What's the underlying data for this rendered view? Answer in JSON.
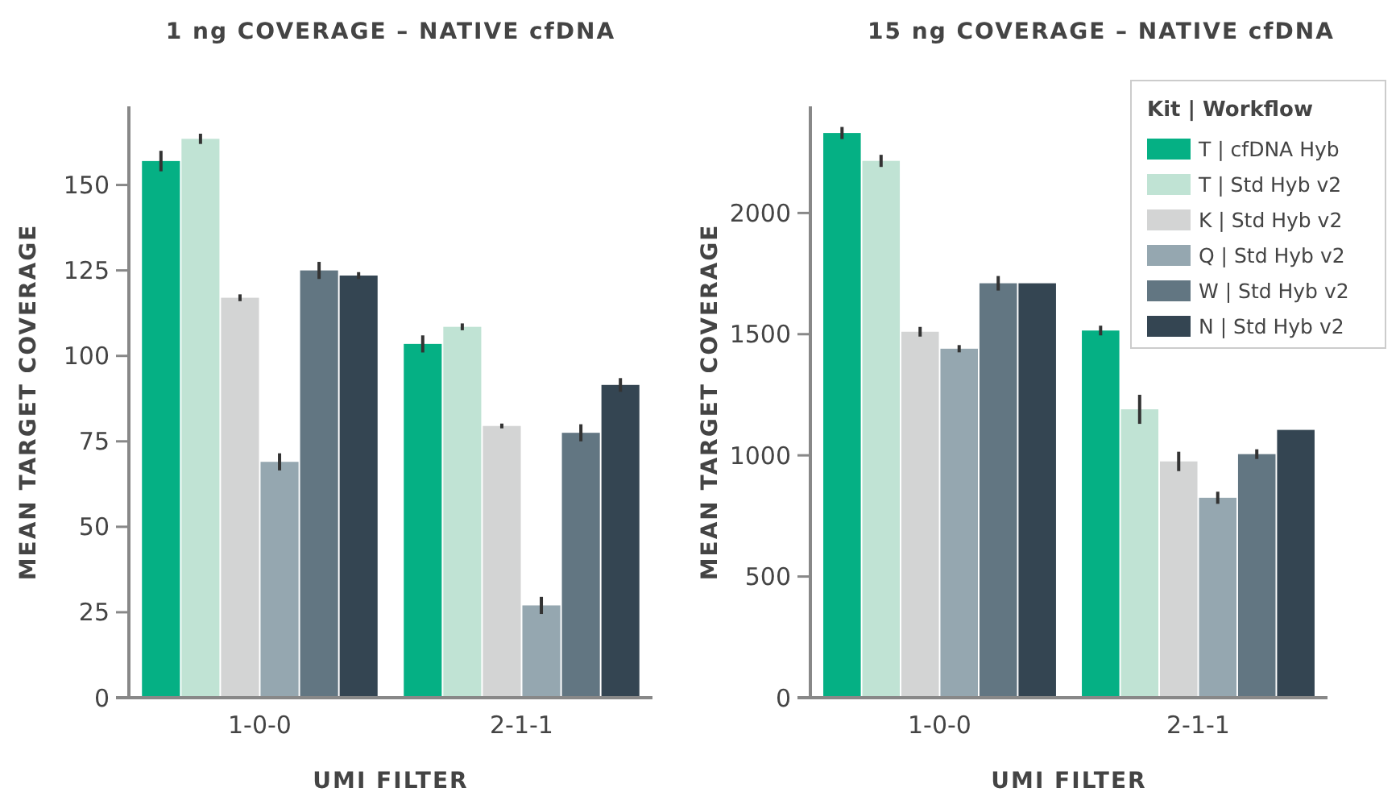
{
  "chart_data": [
    {
      "type": "bar",
      "title": "1 ng COVERAGE – NATIVE cfDNA",
      "xlabel": "UMI FILTER",
      "ylabel": "MEAN TARGET COVERAGE",
      "categories": [
        "1-0-0",
        "2-1-1"
      ],
      "ylim": [
        0,
        173
      ],
      "yticks": [
        0,
        25,
        50,
        75,
        100,
        125,
        150
      ],
      "grid": false,
      "legend": false,
      "series": [
        {
          "color": "#05b084",
          "values": [
            157,
            103.5
          ],
          "errors": [
            3,
            2.5
          ]
        },
        {
          "color": "#c0e3d4",
          "values": [
            163.5,
            108.5
          ],
          "errors": [
            1.5,
            1
          ]
        },
        {
          "color": "#d3d4d4",
          "values": [
            117,
            79.5
          ],
          "errors": [
            1,
            0.7
          ]
        },
        {
          "color": "#95a7b0",
          "values": [
            69,
            27
          ],
          "errors": [
            2.5,
            2.5
          ]
        },
        {
          "color": "#627682",
          "values": [
            125,
            77.5
          ],
          "errors": [
            2.5,
            2.5
          ]
        },
        {
          "color": "#344552",
          "values": [
            123.5,
            91.5
          ],
          "errors": [
            1,
            2
          ]
        }
      ]
    },
    {
      "type": "bar",
      "title": "15 ng COVERAGE – NATIVE cfDNA",
      "xlabel": "UMI FILTER",
      "ylabel": "MEAN TARGET COVERAGE",
      "categories": [
        "1-0-0",
        "2-1-1"
      ],
      "ylim": [
        0,
        2440
      ],
      "yticks": [
        0,
        500,
        1000,
        1500,
        2000
      ],
      "grid": false,
      "legend": "top right",
      "legend_title": "Kit | Workflow",
      "series": [
        {
          "name": "T | cfDNA Hyb",
          "color": "#05b084",
          "values": [
            2330,
            1515
          ],
          "errors": [
            25,
            20
          ]
        },
        {
          "name": "T | Std Hyb v2",
          "color": "#c0e3d4",
          "values": [
            2215,
            1190
          ],
          "errors": [
            25,
            60
          ]
        },
        {
          "name": "K | Std Hyb v2",
          "color": "#d3d4d4",
          "values": [
            1510,
            975
          ],
          "errors": [
            20,
            40
          ]
        },
        {
          "name": "Q | Std Hyb v2",
          "color": "#95a7b0",
          "values": [
            1440,
            825
          ],
          "errors": [
            15,
            25
          ]
        },
        {
          "name": "W | Std Hyb v2",
          "color": "#627682",
          "values": [
            1710,
            1005
          ],
          "errors": [
            30,
            20
          ]
        },
        {
          "name": "N | Std Hyb v2",
          "color": "#344552",
          "values": [
            1710,
            1105
          ],
          "errors": [
            null,
            null
          ]
        }
      ]
    }
  ]
}
